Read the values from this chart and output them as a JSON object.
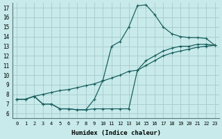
{
  "xlabel": "Humidex (Indice chaleur)",
  "bg_color": "#c8eaea",
  "line_color": "#1a6060",
  "grid_color": "#aacece",
  "xlim": [
    -0.5,
    23.5
  ],
  "ylim": [
    5.5,
    17.5
  ],
  "xticks": [
    0,
    1,
    2,
    3,
    4,
    5,
    6,
    7,
    8,
    9,
    10,
    11,
    12,
    13,
    14,
    15,
    16,
    17,
    18,
    19,
    20,
    21,
    22,
    23
  ],
  "yticks": [
    6,
    7,
    8,
    9,
    10,
    11,
    12,
    13,
    14,
    15,
    16,
    17
  ],
  "curves": [
    {
      "x": [
        0,
        1,
        2,
        3,
        4,
        5,
        6,
        7,
        8,
        9,
        10,
        11,
        12,
        13,
        14,
        15,
        16,
        17,
        18,
        19,
        20,
        21,
        22,
        23
      ],
      "y": [
        7.5,
        7.5,
        7.8,
        7.0,
        7.0,
        6.5,
        6.5,
        6.4,
        6.4,
        7.5,
        9.5,
        13.0,
        13.5,
        15.0,
        17.2,
        17.3,
        16.3,
        15.0,
        14.3,
        14.0,
        13.9,
        13.9,
        13.8,
        13.1
      ]
    },
    {
      "x": [
        0,
        1,
        2,
        3,
        4,
        5,
        6,
        7,
        8,
        9,
        10,
        11,
        12,
        13,
        14,
        15,
        16,
        17,
        18,
        19,
        20,
        21,
        22,
        23
      ],
      "y": [
        7.5,
        7.5,
        7.8,
        8.0,
        8.2,
        8.4,
        8.5,
        8.7,
        8.9,
        9.1,
        9.4,
        9.7,
        10.0,
        10.4,
        10.5,
        11.0,
        11.5,
        12.0,
        12.3,
        12.5,
        12.7,
        12.9,
        13.0,
        13.1
      ]
    },
    {
      "x": [
        0,
        1,
        2,
        3,
        4,
        5,
        6,
        7,
        8,
        9,
        10,
        11,
        12,
        13,
        14,
        15,
        16,
        17,
        18,
        19,
        20,
        21,
        22,
        23
      ],
      "y": [
        7.5,
        7.5,
        7.8,
        7.0,
        7.0,
        6.5,
        6.5,
        6.4,
        6.4,
        6.5,
        6.5,
        6.5,
        6.5,
        6.5,
        10.5,
        11.5,
        12.0,
        12.5,
        12.8,
        13.0,
        13.0,
        13.2,
        13.2,
        13.1
      ]
    }
  ]
}
